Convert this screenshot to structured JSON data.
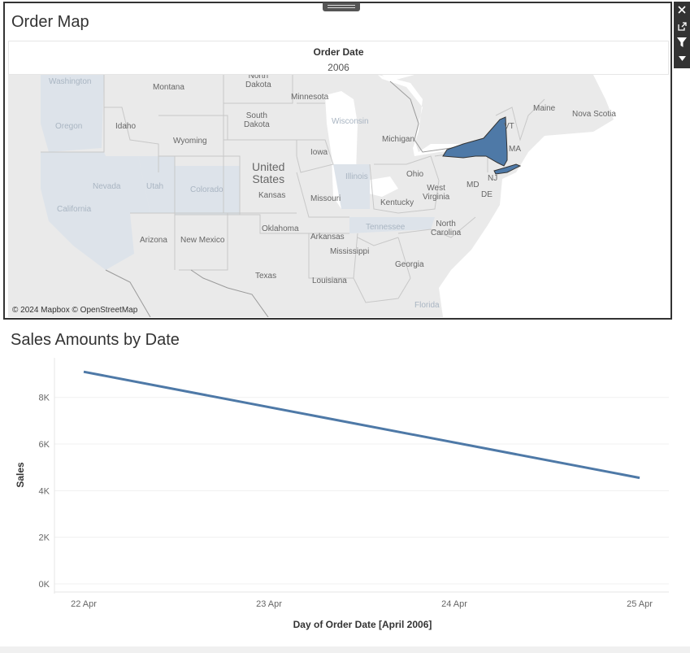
{
  "map_sheet": {
    "title": "Order Map",
    "header_field": "Order Date",
    "header_value": "2006",
    "attribution": "© 2024 Mapbox © OpenStreetMap",
    "highlight_color": "#4e79a7",
    "labels": {
      "washington": "Washington",
      "montana": "Montana",
      "north_dakota": "North\nDakota",
      "minnesota": "Minnesota",
      "oregon": "Oregon",
      "idaho": "Idaho",
      "south_dakota": "South\nDakota",
      "wisconsin": "Wisconsin",
      "michigan": "Michigan",
      "maine": "Maine",
      "nova_scotia": "Nova Scotia",
      "vermont": "VT",
      "massachusetts": "MA",
      "wyoming": "Wyoming",
      "iowa": "Iowa",
      "united_states": "United\nStates",
      "nevada": "Nevada",
      "utah": "Utah",
      "colorado": "Colorado",
      "kansas": "Kansas",
      "illinois": "Illinois",
      "ohio": "Ohio",
      "missouri": "Missouri",
      "california": "California",
      "west_virginia": "West\nVirginia",
      "md": "MD",
      "nj": "NJ",
      "de": "DE",
      "kentucky": "Kentucky",
      "tennessee": "Tennessee",
      "north_carolina": "North\nCarolina",
      "oklahoma": "Oklahoma",
      "arizona": "Arizona",
      "new_mexico": "New Mexico",
      "arkansas": "Arkansas",
      "mississippi": "Mississippi",
      "georgia": "Georgia",
      "texas": "Texas",
      "louisiana": "Louisiana",
      "florida": "Florida"
    }
  },
  "toolbar": {
    "close_icon": "close-icon",
    "popout_icon": "popout-icon",
    "filter_icon": "filter-icon",
    "menu_icon": "dropdown-icon"
  },
  "chart_data": {
    "type": "line",
    "title": "Sales Amounts by Date",
    "xlabel": "Day of Order Date [April 2006]",
    "ylabel": "Sales",
    "categories": [
      "22 Apr",
      "23 Apr",
      "24 Apr",
      "25 Apr"
    ],
    "x": [
      22,
      25
    ],
    "x_labels": [
      "22 Apr",
      "25 Apr"
    ],
    "values": [
      9100,
      4550
    ],
    "y_ticks": [
      0,
      2000,
      4000,
      6000,
      8000
    ],
    "y_tick_labels": [
      "0K",
      "2K",
      "4K",
      "6K",
      "8K"
    ],
    "ylim": [
      0,
      9700
    ],
    "xlim": [
      22,
      25
    ],
    "grid": true,
    "series_color": "#4e79a7"
  }
}
